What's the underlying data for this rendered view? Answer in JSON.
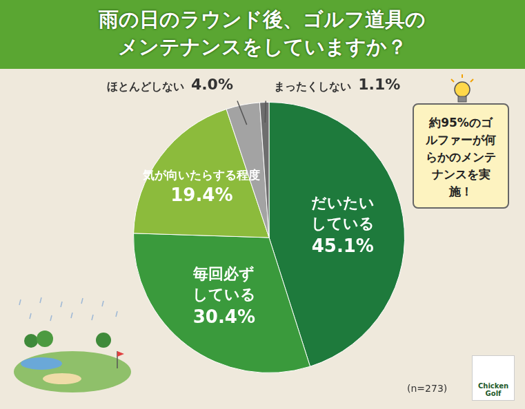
{
  "chart_data": {
    "type": "pie",
    "title": "雨の日のラウンド後、ゴルフ道具のメンテナンスをしていますか？",
    "categories": [
      "だいたいしている",
      "毎回必ずしている",
      "気が向いたらする程度",
      "ほとんどしない",
      "まったくしない"
    ],
    "values": [
      45.1,
      30.4,
      19.4,
      4.0,
      1.1
    ],
    "value_labels": [
      "45.1%",
      "30.4%",
      "19.4%",
      "4.0%",
      "1.1%"
    ],
    "colors": [
      "#1e7a3c",
      "#3a9a3c",
      "#8cbb3c",
      "#a3a3a3",
      "#6e6e6e"
    ],
    "data_labels": true,
    "annotation": "約95%のゴルファーが何らかのメンテナンスを実施！",
    "footnote": "(n=273)",
    "logo": "Chicken Golf"
  }
}
